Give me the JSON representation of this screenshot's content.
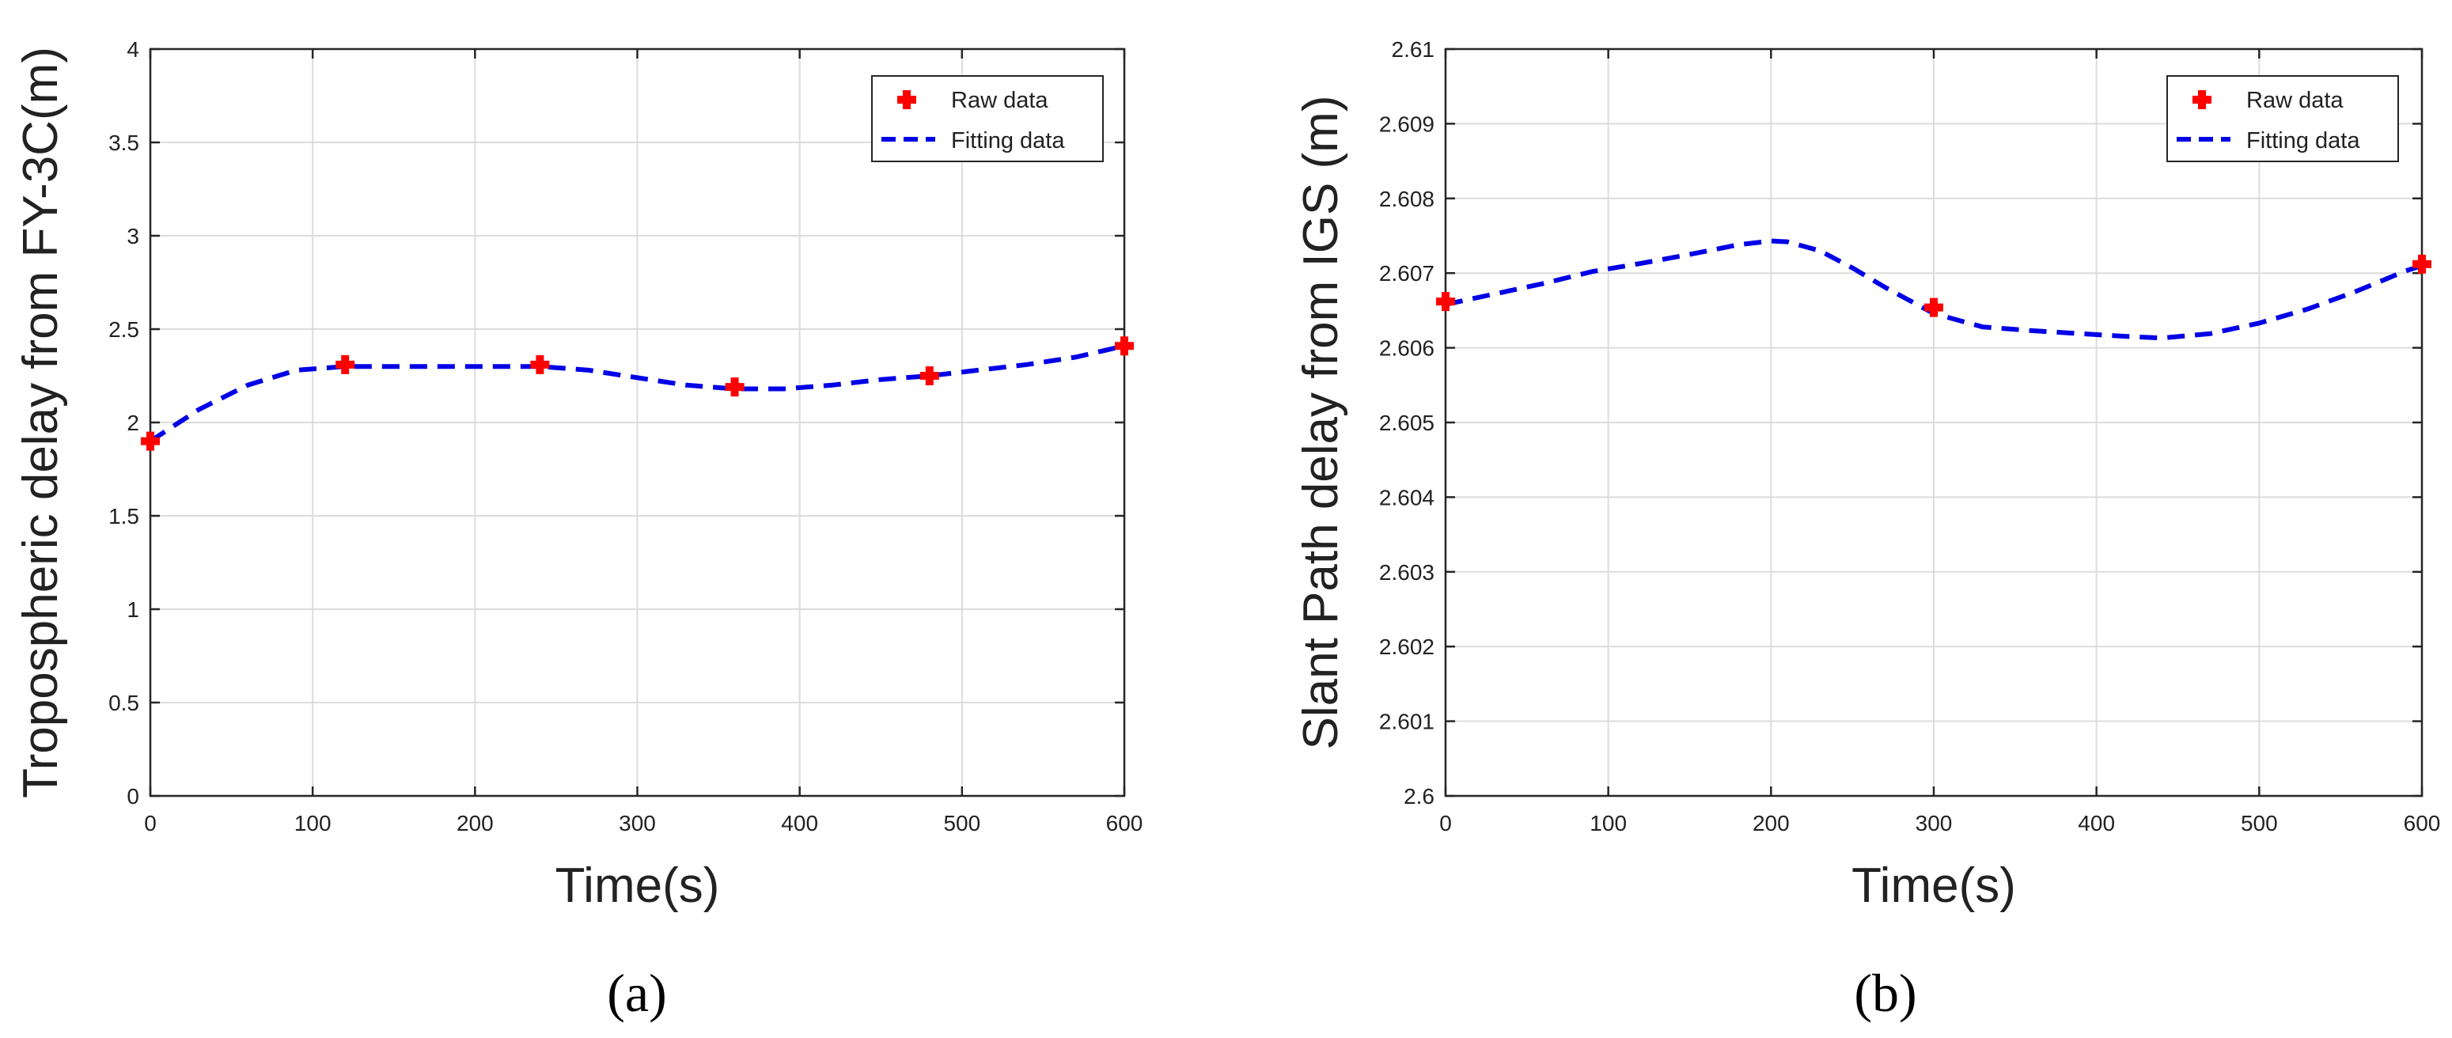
{
  "colors": {
    "raw": "#ff0000",
    "fit": "#0000e6",
    "grid": "#dcdcdc",
    "axis": "#262626"
  },
  "chart_data": [
    {
      "type": "line",
      "panel_label": "(a)",
      "xlabel": "Time(s)",
      "ylabel": "Tropospheric delay from FY-3C(m)",
      "xlim": [
        0,
        600
      ],
      "ylim": [
        0,
        4
      ],
      "xticks": [
        0,
        100,
        200,
        300,
        400,
        500,
        600
      ],
      "yticks": [
        0,
        0.5,
        1,
        1.5,
        2,
        2.5,
        3,
        3.5,
        4
      ],
      "ytick_labels": [
        "0",
        "0.5",
        "1",
        "1.5",
        "2",
        "2.5",
        "3",
        "3.5",
        "4"
      ],
      "grid": true,
      "legend": {
        "position": "top-right",
        "entries": [
          "Raw data",
          "Fitting data"
        ]
      },
      "series": [
        {
          "name": "Raw data",
          "style": "marker-plus",
          "x": [
            0,
            120,
            240,
            360,
            480,
            600
          ],
          "y": [
            1.9,
            2.31,
            2.31,
            2.19,
            2.25,
            2.41
          ]
        },
        {
          "name": "Fitting data",
          "style": "dashed-line",
          "x": [
            0,
            30,
            60,
            90,
            120,
            150,
            180,
            210,
            240,
            270,
            300,
            330,
            360,
            390,
            420,
            450,
            480,
            510,
            540,
            570,
            600
          ],
          "y": [
            1.9,
            2.07,
            2.2,
            2.28,
            2.3,
            2.3,
            2.3,
            2.3,
            2.3,
            2.28,
            2.24,
            2.2,
            2.18,
            2.18,
            2.2,
            2.23,
            2.25,
            2.28,
            2.31,
            2.35,
            2.41
          ]
        }
      ]
    },
    {
      "type": "line",
      "panel_label": "(b)",
      "xlabel": "Time(s)",
      "ylabel": "Slant Path delay from IGS (m)",
      "xlim": [
        0,
        600
      ],
      "ylim": [
        2.6,
        2.61
      ],
      "xticks": [
        0,
        100,
        200,
        300,
        400,
        500,
        600
      ],
      "yticks": [
        2.6,
        2.601,
        2.602,
        2.603,
        2.604,
        2.605,
        2.606,
        2.607,
        2.608,
        2.609,
        2.61
      ],
      "ytick_labels": [
        "2.6",
        "2.601",
        "2.602",
        "2.603",
        "2.604",
        "2.605",
        "2.606",
        "2.607",
        "2.608",
        "2.609",
        "2.61"
      ],
      "grid": true,
      "legend": {
        "position": "top-right",
        "entries": [
          "Raw data",
          "Fitting data"
        ]
      },
      "series": [
        {
          "name": "Raw data",
          "style": "marker-plus",
          "x": [
            0,
            300,
            600
          ],
          "y": [
            2.60662,
            2.60654,
            2.60712
          ]
        },
        {
          "name": "Fitting data",
          "style": "dashed-line",
          "x": [
            0,
            30,
            60,
            90,
            120,
            150,
            180,
            200,
            210,
            230,
            250,
            270,
            300,
            330,
            360,
            390,
            420,
            440,
            470,
            500,
            530,
            560,
            590,
            600
          ],
          "y": [
            2.60658,
            2.60672,
            2.60686,
            2.60702,
            2.60713,
            2.60725,
            2.60738,
            2.60743,
            2.60742,
            2.6073,
            2.60707,
            2.60681,
            2.60646,
            2.60628,
            2.60623,
            2.60619,
            2.60615,
            2.60613,
            2.60619,
            2.60633,
            2.60652,
            2.60676,
            2.60703,
            2.6071
          ]
        }
      ]
    }
  ]
}
